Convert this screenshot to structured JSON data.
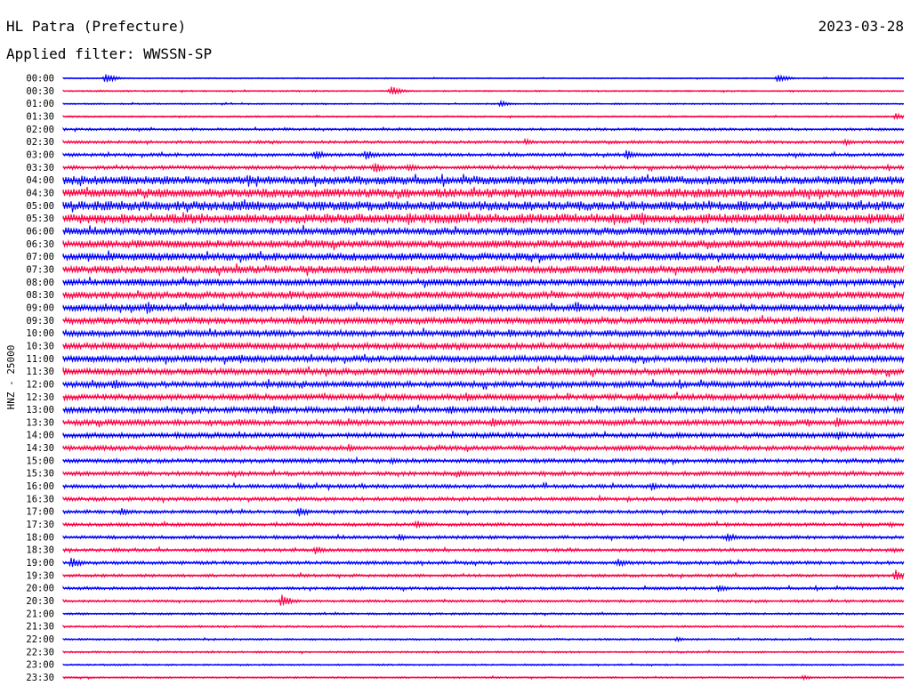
{
  "header": {
    "station": "HL Patra (Prefecture)",
    "date": "2023-03-28",
    "filter": "Applied filter: WWSSN-SP"
  },
  "chart_data": {
    "type": "line",
    "ylabel": "HNZ - 25000",
    "trace_colors": [
      "#0000ff",
      "#ff0044"
    ],
    "row_labels": [
      "00:00",
      "00:30",
      "01:00",
      "01:30",
      "02:00",
      "02:30",
      "03:00",
      "03:30",
      "04:00",
      "04:30",
      "05:00",
      "05:30",
      "06:00",
      "06:30",
      "07:00",
      "07:30",
      "08:00",
      "08:30",
      "09:00",
      "09:30",
      "10:00",
      "10:30",
      "11:00",
      "11:30",
      "12:00",
      "12:30",
      "13:00",
      "13:30",
      "14:00",
      "14:30",
      "15:00",
      "15:30",
      "16:00",
      "16:30",
      "17:00",
      "17:30",
      "18:00",
      "18:30",
      "19:00",
      "19:30",
      "20:00",
      "20:30",
      "21:00",
      "21:30",
      "22:00",
      "22:30",
      "23:00",
      "23:30"
    ],
    "noise_level": [
      0.6,
      0.7,
      0.7,
      0.8,
      1.2,
      1.4,
      1.6,
      1.8,
      4.0,
      4.2,
      4.4,
      4.6,
      3.6,
      3.6,
      3.6,
      3.6,
      3.2,
      3.2,
      3.2,
      3.2,
      3.0,
      3.0,
      3.0,
      3.0,
      2.8,
      2.8,
      2.8,
      2.6,
      2.4,
      2.2,
      2.0,
      2.0,
      1.8,
      1.8,
      1.6,
      1.6,
      1.6,
      1.6,
      1.6,
      1.4,
      1.4,
      1.2,
      1.0,
      1.0,
      0.9,
      0.9,
      0.8,
      0.8
    ],
    "events": [
      {
        "row": 0,
        "t": 0.05,
        "amp": 6
      },
      {
        "row": 0,
        "t": 0.85,
        "amp": 5
      },
      {
        "row": 1,
        "t": 0.39,
        "amp": 6
      },
      {
        "row": 2,
        "t": 0.52,
        "amp": 4
      },
      {
        "row": 3,
        "t": 0.99,
        "amp": 4
      },
      {
        "row": 5,
        "t": 0.55,
        "amp": 4
      },
      {
        "row": 5,
        "t": 0.93,
        "amp": 4
      },
      {
        "row": 6,
        "t": 0.3,
        "amp": 6
      },
      {
        "row": 6,
        "t": 0.36,
        "amp": 6
      },
      {
        "row": 6,
        "t": 0.67,
        "amp": 6
      },
      {
        "row": 7,
        "t": 0.37,
        "amp": 7
      },
      {
        "row": 7,
        "t": 0.41,
        "amp": 5
      },
      {
        "row": 8,
        "t": 0.22,
        "amp": 8
      },
      {
        "row": 11,
        "t": 0.41,
        "amp": 8
      },
      {
        "row": 13,
        "t": 0.2,
        "amp": 5
      },
      {
        "row": 14,
        "t": 0.03,
        "amp": 6
      },
      {
        "row": 14,
        "t": 0.61,
        "amp": 6
      },
      {
        "row": 15,
        "t": 0.98,
        "amp": 6
      },
      {
        "row": 17,
        "t": 0.27,
        "amp": 5
      },
      {
        "row": 18,
        "t": 0.1,
        "amp": 8
      },
      {
        "row": 18,
        "t": 0.61,
        "amp": 8
      },
      {
        "row": 19,
        "t": 0.87,
        "amp": 6
      },
      {
        "row": 20,
        "t": 0.53,
        "amp": 6
      },
      {
        "row": 20,
        "t": 0.86,
        "amp": 5
      },
      {
        "row": 22,
        "t": 0.21,
        "amp": 6
      },
      {
        "row": 22,
        "t": 0.82,
        "amp": 7
      },
      {
        "row": 23,
        "t": 0.0,
        "amp": 6
      },
      {
        "row": 23,
        "t": 0.37,
        "amp": 5
      },
      {
        "row": 24,
        "t": 0.06,
        "amp": 7
      },
      {
        "row": 25,
        "t": 0.48,
        "amp": 6
      },
      {
        "row": 25,
        "t": 0.99,
        "amp": 6
      },
      {
        "row": 26,
        "t": 0.25,
        "amp": 6
      },
      {
        "row": 26,
        "t": 0.46,
        "amp": 6
      },
      {
        "row": 27,
        "t": 0.21,
        "amp": 5
      },
      {
        "row": 27,
        "t": 0.51,
        "amp": 7
      },
      {
        "row": 27,
        "t": 0.92,
        "amp": 7
      },
      {
        "row": 28,
        "t": 0.92,
        "amp": 6
      },
      {
        "row": 29,
        "t": 0.34,
        "amp": 5
      },
      {
        "row": 30,
        "t": 0.39,
        "amp": 4
      },
      {
        "row": 31,
        "t": 0.47,
        "amp": 4
      },
      {
        "row": 32,
        "t": 0.28,
        "amp": 4
      },
      {
        "row": 32,
        "t": 0.7,
        "amp": 5
      },
      {
        "row": 34,
        "t": 0.07,
        "amp": 5
      },
      {
        "row": 34,
        "t": 0.28,
        "amp": 6
      },
      {
        "row": 35,
        "t": 0.42,
        "amp": 5
      },
      {
        "row": 36,
        "t": 0.4,
        "amp": 4
      },
      {
        "row": 36,
        "t": 0.79,
        "amp": 6
      },
      {
        "row": 37,
        "t": 0.3,
        "amp": 5
      },
      {
        "row": 38,
        "t": 0.01,
        "amp": 7
      },
      {
        "row": 38,
        "t": 0.66,
        "amp": 5
      },
      {
        "row": 39,
        "t": 0.99,
        "amp": 7
      },
      {
        "row": 40,
        "t": 0.78,
        "amp": 5
      },
      {
        "row": 41,
        "t": 0.26,
        "amp": 8
      },
      {
        "row": 44,
        "t": 0.73,
        "amp": 3
      },
      {
        "row": 47,
        "t": 0.88,
        "amp": 3
      }
    ]
  }
}
